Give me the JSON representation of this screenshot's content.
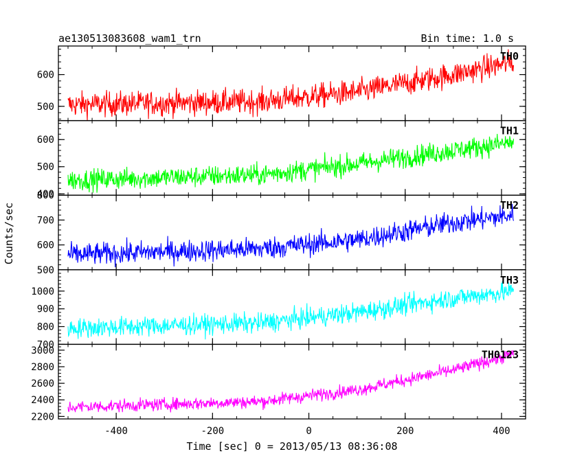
{
  "title_left": "ae130513083608_wam1_trn",
  "title_right": "Bin time: 1.0 s",
  "ylabel": "Counts/sec",
  "xlabel": "Time [sec] 0 = 2013/05/13 08:36:08",
  "chart_data": {
    "type": "line",
    "title": "ae130513083608_wam1_trn",
    "subtitle": "Bin time: 1.0 s",
    "xlabel": "Time [sec] 0 = 2013/05/13 08:36:08",
    "ylabel": "Counts/sec",
    "xlim": [
      -520,
      450
    ],
    "x_ticks": [
      -400,
      -200,
      0,
      200,
      400
    ],
    "x_range": [
      -500,
      425
    ],
    "bin_seconds": 1.0,
    "grid": false,
    "panels": [
      {
        "name": "TH0",
        "color": "#ff0000",
        "ylim": [
          455,
          690
        ],
        "y_ticks": [
          500,
          600
        ],
        "trend": [
          [
            -500,
            505
          ],
          [
            -100,
            515
          ],
          [
            100,
            545
          ],
          [
            300,
            600
          ],
          [
            425,
            640
          ]
        ],
        "scatter": 28
      },
      {
        "name": "TH1",
        "color": "#00ff00",
        "ylim": [
          395,
          670
        ],
        "y_ticks": [
          400,
          500,
          600
        ],
        "trend": [
          [
            -500,
            450
          ],
          [
            -100,
            470
          ],
          [
            100,
            510
          ],
          [
            300,
            560
          ],
          [
            425,
            590
          ]
        ],
        "scatter": 28
      },
      {
        "name": "TH2",
        "color": "#0000ff",
        "ylim": [
          500,
          800
        ],
        "y_ticks": [
          500,
          600,
          700,
          800
        ],
        "trend": [
          [
            -500,
            560
          ],
          [
            -100,
            585
          ],
          [
            100,
            620
          ],
          [
            300,
            690
          ],
          [
            425,
            720
          ]
        ],
        "scatter": 32
      },
      {
        "name": "TH3",
        "color": "#00ffff",
        "ylim": [
          700,
          1120
        ],
        "y_ticks": [
          700,
          800,
          900,
          1000
        ],
        "trend": [
          [
            -500,
            790
          ],
          [
            -100,
            820
          ],
          [
            100,
            880
          ],
          [
            300,
            960
          ],
          [
            425,
            1000
          ]
        ],
        "scatter": 40
      },
      {
        "name": "TH0123",
        "color": "#ff00ff",
        "ylim": [
          2170,
          3070
        ],
        "y_ticks": [
          2200,
          2400,
          2600,
          2800,
          3000
        ],
        "trend": [
          [
            -500,
            2310
          ],
          [
            -100,
            2380
          ],
          [
            100,
            2520
          ],
          [
            300,
            2760
          ],
          [
            425,
            2950
          ]
        ],
        "scatter": 55
      }
    ]
  }
}
